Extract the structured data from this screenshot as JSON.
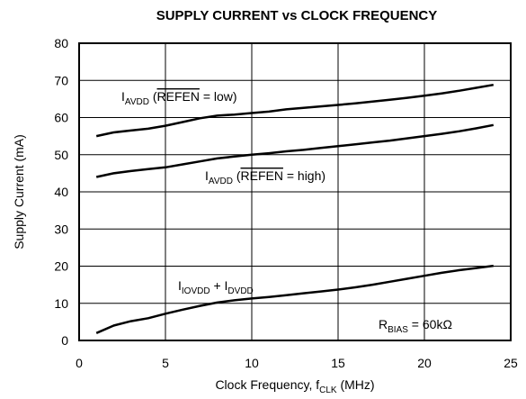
{
  "chart_data": {
    "type": "line",
    "title": "SUPPLY CURRENT vs CLOCK FREQUENCY",
    "x_label": [
      {
        "text": "Clock Frequency, f"
      },
      {
        "text": "CLK",
        "style": "sub"
      },
      {
        "text": " (MHz)"
      }
    ],
    "y_label": "Supply Current (mA)",
    "x": [
      1,
      2,
      3,
      4,
      5,
      6,
      7,
      8,
      9,
      10,
      11,
      12,
      13,
      14,
      15,
      16,
      17,
      18,
      19,
      20,
      21,
      22,
      23,
      24
    ],
    "series": [
      {
        "label": [
          {
            "text": "I"
          },
          {
            "text": "AVDD",
            "style": "sub"
          },
          {
            "text": " ("
          },
          {
            "text": "REFEN",
            "style": "over"
          },
          {
            "text": " = low)"
          }
        ],
        "color": "#000000",
        "values": [
          55,
          56,
          56.5,
          57,
          57.8,
          58.8,
          59.8,
          60.5,
          60.8,
          61.2,
          61.6,
          62.2,
          62.6,
          63,
          63.4,
          63.8,
          64.3,
          64.8,
          65.3,
          65.9,
          66.5,
          67.2,
          68,
          68.8
        ]
      },
      {
        "label": [
          {
            "text": "I"
          },
          {
            "text": "AVDD",
            "style": "sub"
          },
          {
            "text": " ("
          },
          {
            "text": "REFEN",
            "style": "over"
          },
          {
            "text": " = high)"
          }
        ],
        "color": "#000000",
        "values": [
          44,
          45,
          45.6,
          46.1,
          46.6,
          47.4,
          48.2,
          49,
          49.5,
          50,
          50.4,
          50.9,
          51.3,
          51.8,
          52.3,
          52.8,
          53.3,
          53.8,
          54.4,
          55,
          55.6,
          56.3,
          57.1,
          58
        ]
      },
      {
        "label": [
          {
            "text": "I"
          },
          {
            "text": "IOVDD",
            "style": "sub"
          },
          {
            "text": " + I"
          },
          {
            "text": "DVDD",
            "style": "sub"
          }
        ],
        "color": "#000000",
        "values": [
          2,
          4,
          5.2,
          6,
          7.2,
          8.3,
          9.3,
          10.2,
          10.8,
          11.3,
          11.7,
          12.2,
          12.7,
          13.2,
          13.7,
          14.3,
          15,
          15.8,
          16.6,
          17.4,
          18.2,
          18.9,
          19.5,
          20.1
        ]
      }
    ],
    "annotation": [
      {
        "text": "R"
      },
      {
        "text": "BIAS",
        "style": "sub"
      },
      {
        "text": " = 60kΩ"
      }
    ],
    "xlim": [
      0,
      25
    ],
    "xticks": [
      0,
      5,
      10,
      15,
      20,
      25
    ],
    "ylim": [
      0,
      80
    ],
    "yticks": [
      0,
      10,
      20,
      30,
      40,
      50,
      60,
      70,
      80
    ],
    "grid": true
  }
}
